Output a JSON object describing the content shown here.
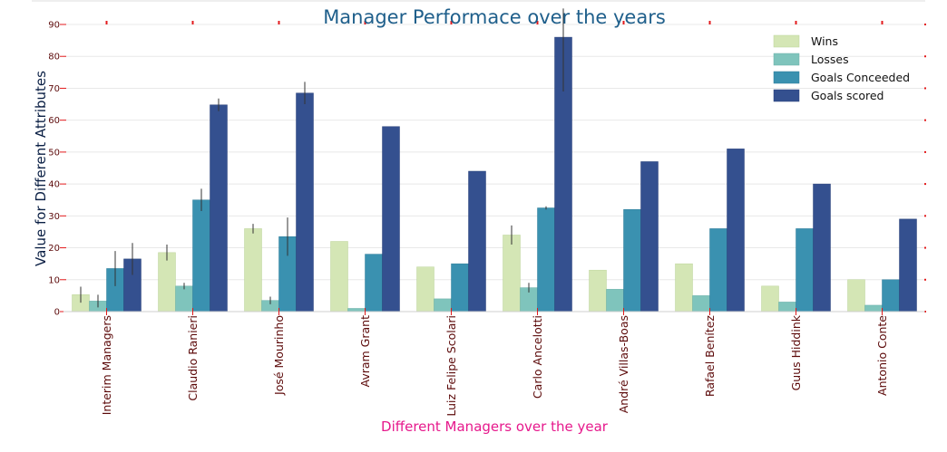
{
  "chart_data": {
    "type": "bar",
    "title": "Manager Performace over the years",
    "xlabel": "Different Managers over the year",
    "ylabel": "Value for Different Attributes",
    "categories": [
      "Interim Managers",
      "Claudio Ranieri",
      "José Mourinho",
      "Avram Grant",
      "Luiz Felipe Scolari",
      "Carlo Ancelotti",
      "André Villas-Boas",
      "Rafael Benítez",
      "Guus Hiddink",
      "Antonio Conte"
    ],
    "ylim": [
      0,
      90
    ],
    "yticks": [
      0,
      10,
      20,
      30,
      40,
      50,
      60,
      70,
      80,
      90
    ],
    "grid": true,
    "legend_position": "top-right",
    "series": [
      {
        "name": "Wins",
        "color": "#d4e6b5",
        "edge": "#bcd49a",
        "values": [
          5.3,
          18.5,
          26,
          22,
          14,
          24,
          13,
          15,
          8,
          10
        ],
        "err": [
          2.5,
          2.5,
          1.5,
          0,
          0,
          3,
          0,
          0,
          0,
          0
        ]
      },
      {
        "name": "Losses",
        "color": "#7fc4bc",
        "edge": "#6ab0a8",
        "values": [
          3.3,
          8,
          3.5,
          1,
          4,
          7.5,
          7,
          5,
          3,
          2
        ],
        "err": [
          2,
          1,
          1.2,
          0,
          0,
          1.5,
          0,
          0,
          0,
          0
        ]
      },
      {
        "name": "Goals Conceeded",
        "color": "#3a91b0",
        "edge": "#2f7d99",
        "values": [
          13.5,
          35,
          23.5,
          18,
          15,
          32.5,
          32,
          26,
          26,
          10
        ],
        "err": [
          5.5,
          3.5,
          6,
          0,
          0,
          0.5,
          0,
          0,
          0,
          0
        ]
      },
      {
        "name": "Goals scored",
        "color": "#34508f",
        "edge": "#2a427a",
        "values": [
          16.5,
          64.8,
          68.5,
          58,
          44,
          86,
          47,
          51,
          40,
          29
        ],
        "err": [
          5,
          2,
          3.5,
          0,
          0,
          17,
          0,
          0,
          0,
          0
        ]
      }
    ],
    "colors": {
      "title": "#1f5f8b",
      "xlabel": "#e6198c",
      "ylabel": "#0a1f44",
      "ticks": "#5c0a0a",
      "tick_marks": "#e31a1c",
      "grid": "#e8e8e8",
      "errorbar": "#333333"
    }
  }
}
